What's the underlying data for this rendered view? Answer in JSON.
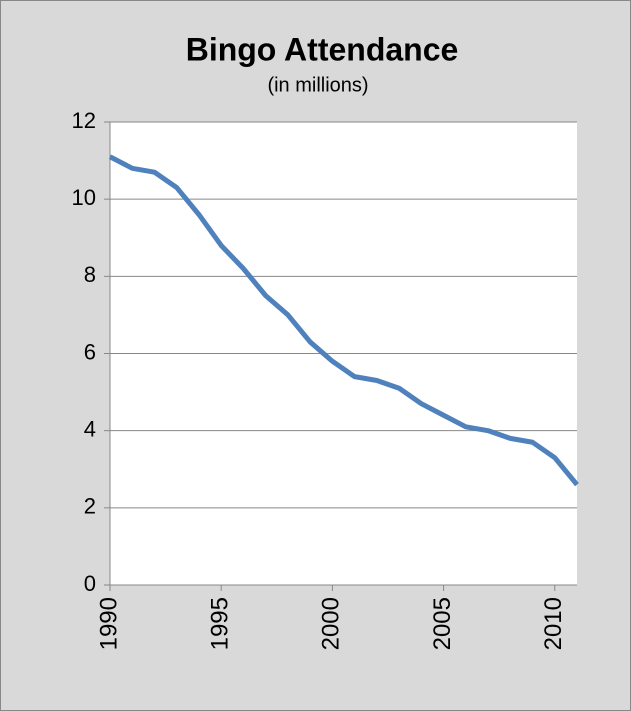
{
  "chart_data": {
    "type": "line",
    "title": "Bingo Attendance",
    "subtitle": "(in millions)",
    "x": [
      1990,
      1991,
      1992,
      1993,
      1994,
      1995,
      1996,
      1997,
      1998,
      1999,
      2000,
      2001,
      2002,
      2003,
      2004,
      2005,
      2006,
      2007,
      2008,
      2009,
      2010,
      2011
    ],
    "series": [
      {
        "name": "Bingo Attendance",
        "color": "#4f81bd",
        "values": [
          11.1,
          10.8,
          10.7,
          10.3,
          9.6,
          8.8,
          8.2,
          7.5,
          7.0,
          6.3,
          5.8,
          5.4,
          5.3,
          5.1,
          4.7,
          4.4,
          4.1,
          4.0,
          3.8,
          3.7,
          3.3,
          2.6
        ]
      }
    ],
    "xlim": [
      1990,
      2011
    ],
    "xticks": [
      1990,
      1995,
      2000,
      2005,
      2010
    ],
    "ylim": [
      0,
      12
    ],
    "yticks": [
      0,
      2,
      4,
      6,
      8,
      10,
      12
    ],
    "grid": true
  }
}
